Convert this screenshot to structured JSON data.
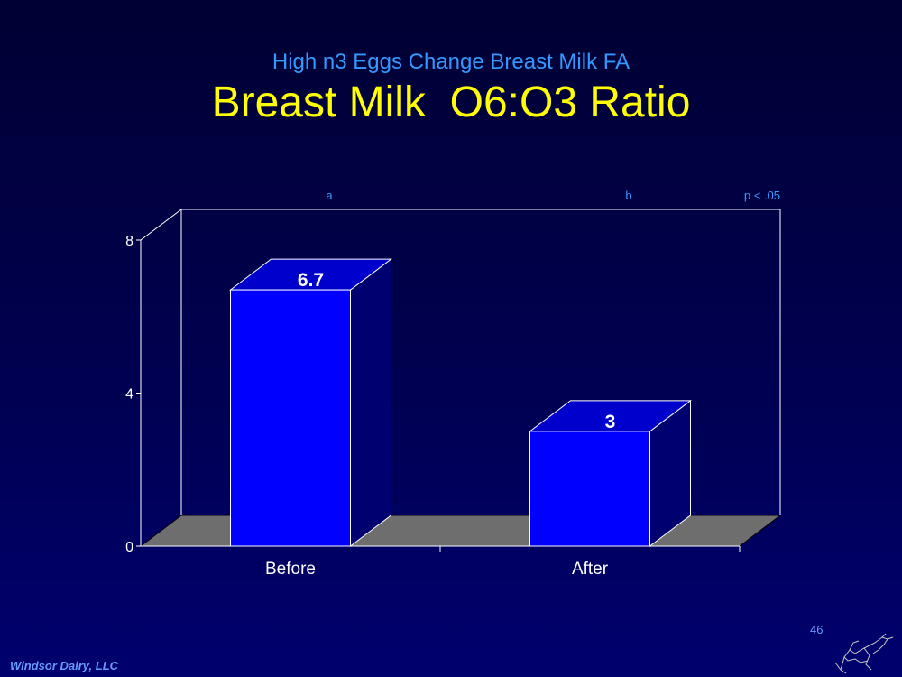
{
  "slide": {
    "subtitle": "High n3 Eggs Change Breast Milk FA",
    "title": "Breast Milk  O6:O3 Ratio",
    "footer": "Windsor Dairy, LLC",
    "page_number": "46",
    "logo_icon": "cow-sketch-icon"
  },
  "chart_data": {
    "type": "bar",
    "style": "3d",
    "categories": [
      "Before",
      "After"
    ],
    "values": [
      6.7,
      3
    ],
    "value_labels": [
      "6.7",
      "3"
    ],
    "significance_letters": [
      "a",
      "b"
    ],
    "annotation": "p < .05",
    "yticks": [
      0,
      4,
      8
    ],
    "ylim": [
      0,
      8
    ],
    "grid": false,
    "colors": {
      "bar_front": "#0000ff",
      "bar_top": "#0000cc",
      "bar_side": "#000070",
      "floor": "#6e6e6e",
      "axis": "#ffffff",
      "letters": "#3399ff"
    }
  }
}
